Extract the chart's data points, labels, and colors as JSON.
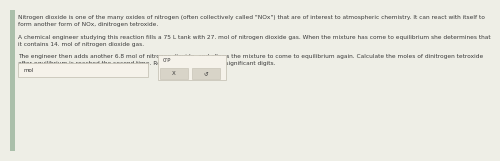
{
  "bg_color": "#eeeee6",
  "text_color": "#3a3a3a",
  "paragraph1": "Nitrogen dioxide is one of the many oxides of nitrogen (often collectively called \"NOx\") that are of interest to atmospheric chemistry. It can react with itself to\nform another form of NOx, dinitrogen tetroxide.",
  "paragraph2": "A chemical engineer studying this reaction fills a 75 L tank with 27. mol of nitrogen dioxide gas. When the mixture has come to equilibrium she determines that\nit contains 14. mol of nitrogen dioxide gas.",
  "paragraph3": "The engineer then adds another 6.8 mol of nitrogen dioxide, and allows the mixture to come to equilibrium again. Calculate the moles of dinitrogen tetroxide\nafter equilibrium is reached the second time. Round your answer to 2 significant digits.",
  "input_placeholder": "mol",
  "answer_label": "0’P",
  "button_x": "X",
  "button_r": "↺",
  "left_bar_color": "#aabfaa",
  "box_bg": "#f5f2ea",
  "box_border": "#c8c4b8",
  "button_bg": "#d8d4c8",
  "font_size_body": 4.2,
  "font_size_ui": 4.0
}
